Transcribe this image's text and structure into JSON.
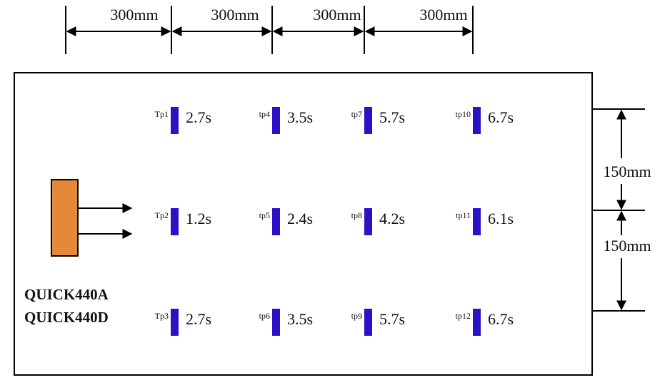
{
  "dimensions": {
    "horizontal": [
      "300mm",
      "300mm",
      "300mm",
      "300mm"
    ],
    "vertical": [
      "150mm",
      "150mm"
    ]
  },
  "models": [
    "QUICK440A",
    "QUICK440D"
  ],
  "test_points": [
    {
      "label": "Tp1",
      "time": "2.7s"
    },
    {
      "label": "tp4",
      "time": "3.5s"
    },
    {
      "label": "tp7",
      "time": "5.7s"
    },
    {
      "label": "tp10",
      "time": "6.7s"
    },
    {
      "label": "Tp2",
      "time": "1.2s"
    },
    {
      "label": "tp5",
      "time": "2.4s"
    },
    {
      "label": "tp8",
      "time": "4.2s"
    },
    {
      "label": "tp11",
      "time": "6.1s"
    },
    {
      "label": "Tp3",
      "time": "2.7s"
    },
    {
      "label": "tp6",
      "time": "3.5s"
    },
    {
      "label": "tp9",
      "time": "5.7s"
    },
    {
      "label": "tp12",
      "time": "6.7s"
    }
  ],
  "colors": {
    "sensor": "#2a12c8",
    "device": "#e4883a",
    "line": "#000000"
  }
}
